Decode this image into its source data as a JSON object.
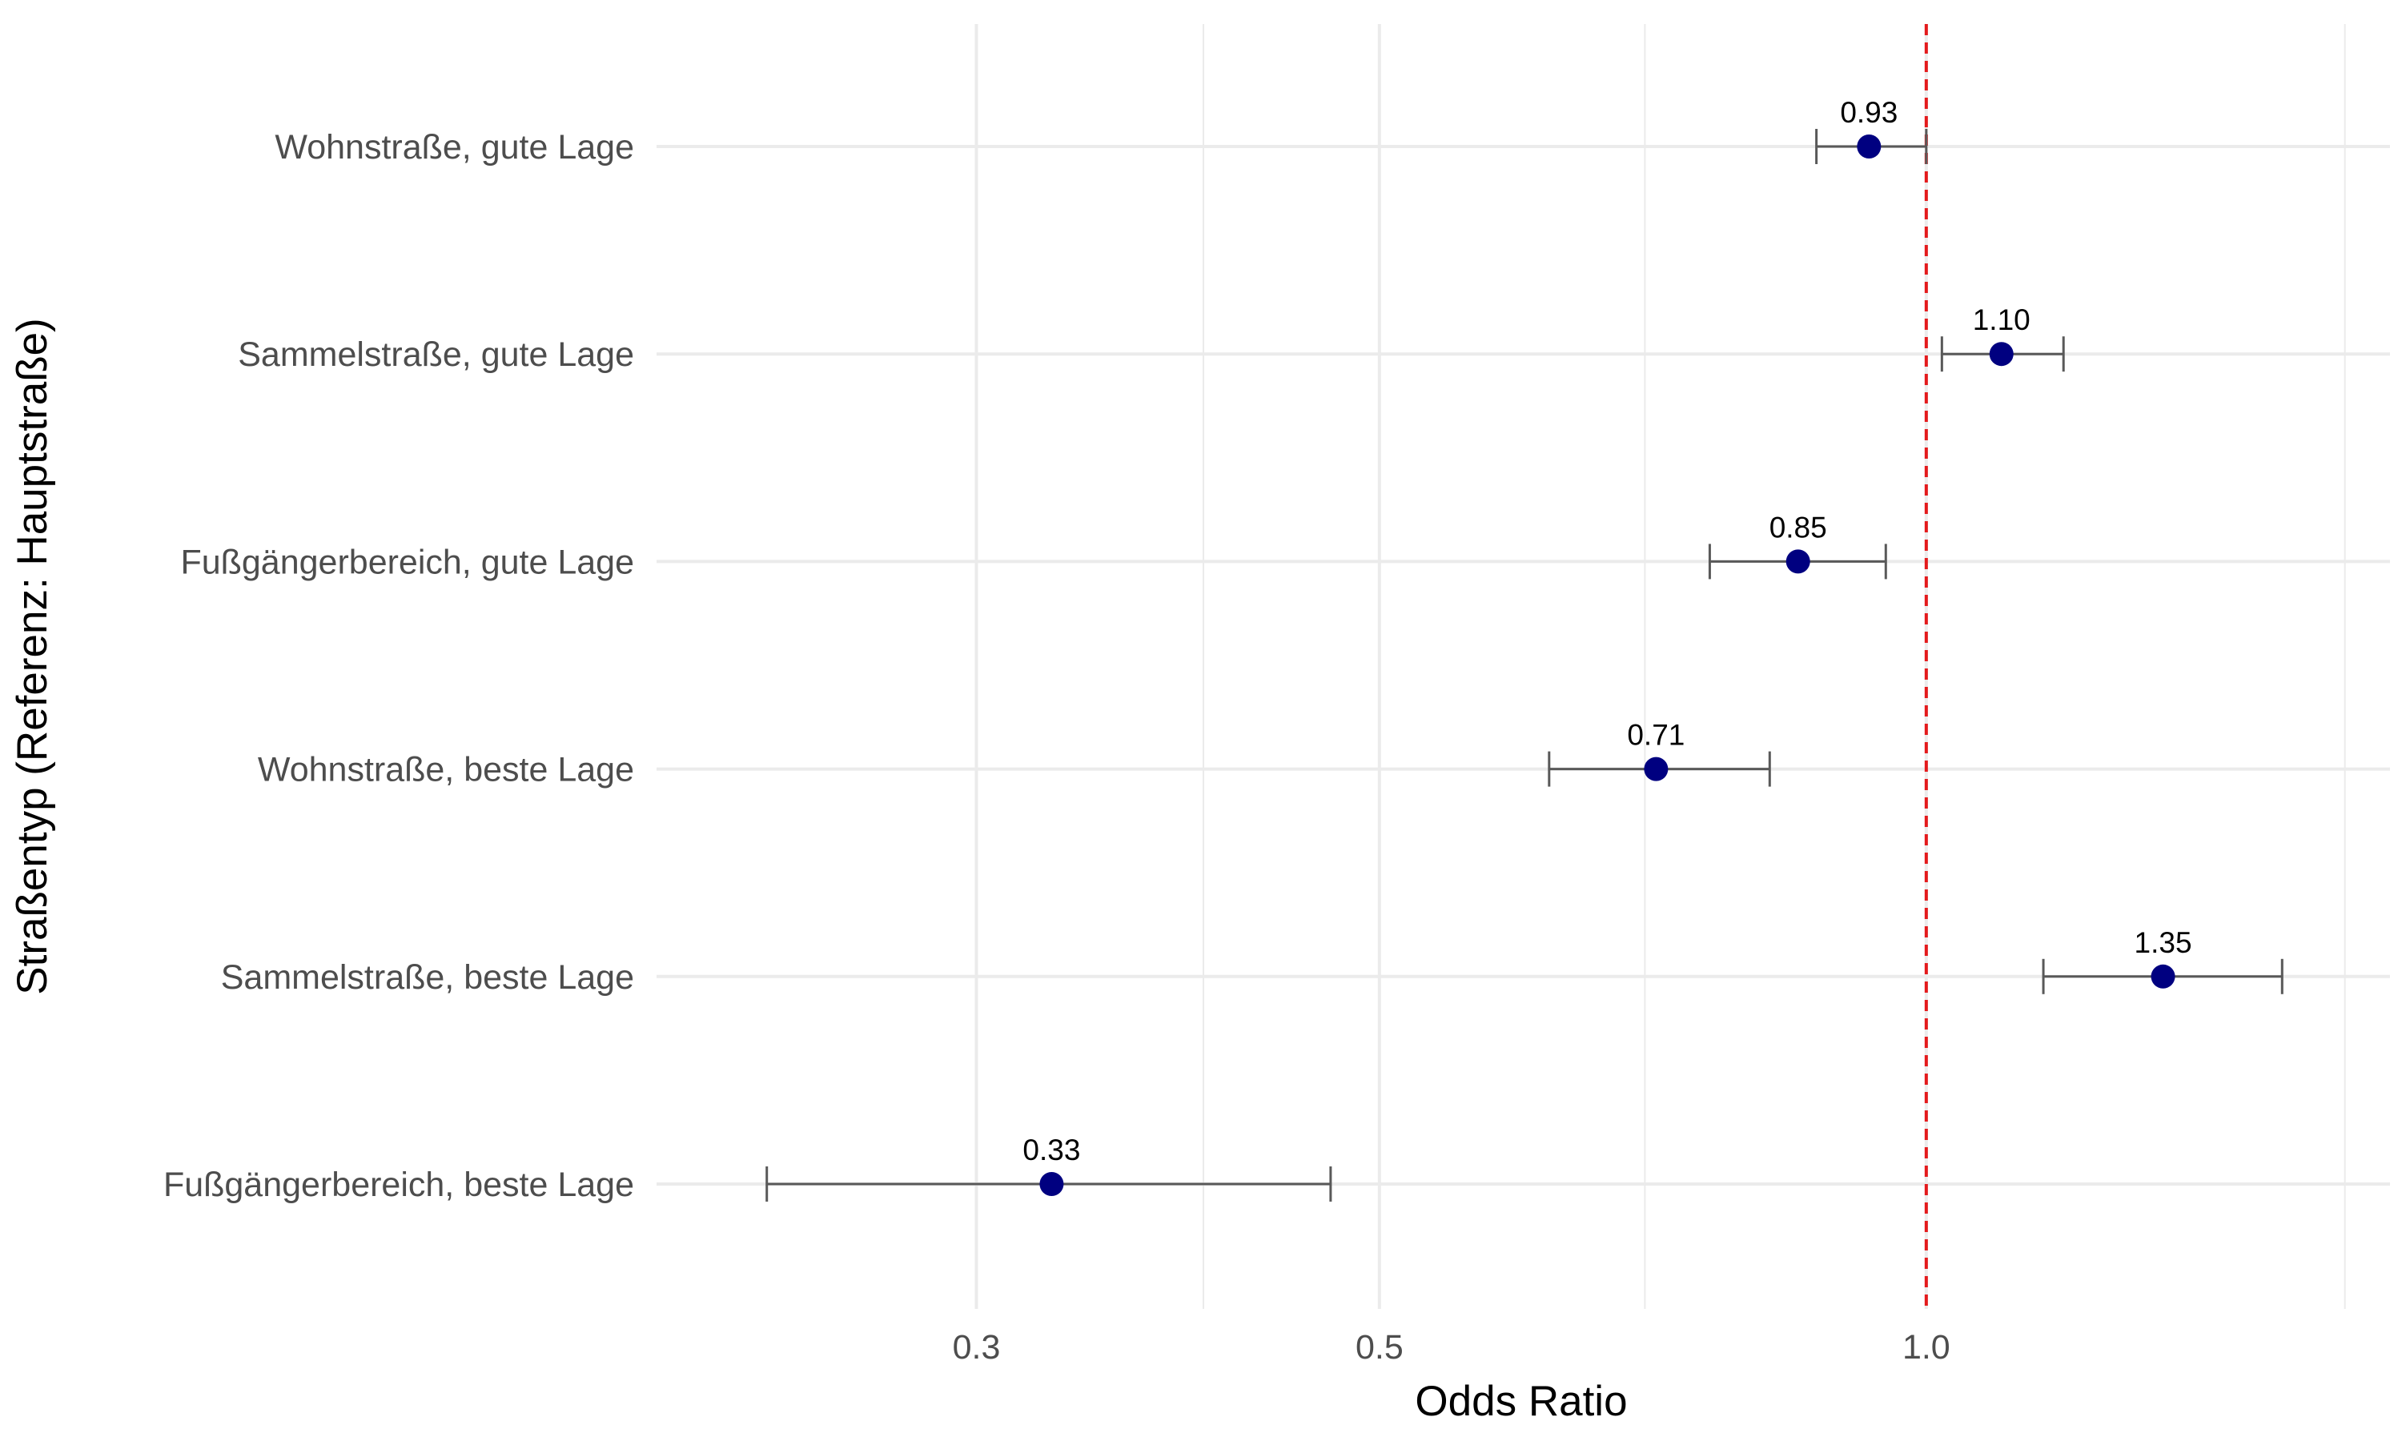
{
  "chart_data": {
    "type": "scatter",
    "variant": "forest-plot",
    "xlabel": "Odds Ratio",
    "ylabel": "Straßentyp (Referenz: Hauptstraße)",
    "x_scale": "log",
    "xlim": [
      0.2,
      1.8
    ],
    "x_ticks": [
      {
        "value": 0.3,
        "label": "0.3"
      },
      {
        "value": 0.5,
        "label": "0.5"
      },
      {
        "value": 1.0,
        "label": "1.0"
      }
    ],
    "x_minor_grid": [
      0.4,
      0.7,
      1.7
    ],
    "reference_line": {
      "value": 1.0,
      "style": "dashed",
      "color": "#e41a1c"
    },
    "grid": true,
    "legend": "none",
    "colors": {
      "point": "#000080",
      "errorbar": "#595959",
      "grid": "#ebebeb"
    },
    "categories": [
      "Wohnstraße, gute Lage",
      "Sammelstraße, gute Lage",
      "Fußgängerbereich, gute Lage",
      "Wohnstraße, beste Lage",
      "Sammelstraße, beste Lage",
      "Fußgängerbereich, beste Lage"
    ],
    "points": [
      {
        "category": "Wohnstraße, gute Lage",
        "or": 0.93,
        "lower": 0.87,
        "upper": 1.0,
        "label": "0.93"
      },
      {
        "category": "Sammelstraße, gute Lage",
        "or": 1.1,
        "lower": 1.02,
        "upper": 1.19,
        "label": "1.10"
      },
      {
        "category": "Fußgängerbereich, gute Lage",
        "or": 0.85,
        "lower": 0.76,
        "upper": 0.95,
        "label": "0.85"
      },
      {
        "category": "Wohnstraße, beste Lage",
        "or": 0.71,
        "lower": 0.62,
        "upper": 0.82,
        "label": "0.71"
      },
      {
        "category": "Sammelstraße, beste Lage",
        "or": 1.35,
        "lower": 1.16,
        "upper": 1.57,
        "label": "1.35"
      },
      {
        "category": "Fußgängerbereich, beste Lage",
        "or": 0.33,
        "lower": 0.23,
        "upper": 0.47,
        "label": "0.33"
      }
    ]
  }
}
